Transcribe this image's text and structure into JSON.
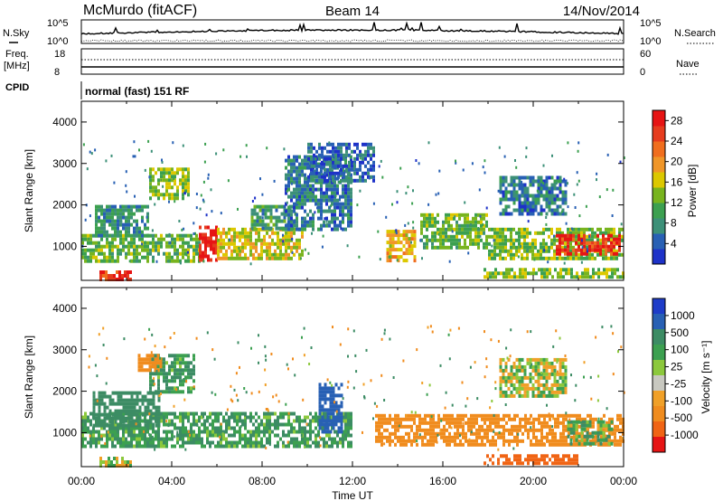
{
  "header": {
    "station": "McMurdo (fitACF)",
    "beam": "Beam 14",
    "date": "14/Nov/2014"
  },
  "summary_panels": {
    "nsky_label": "N.Sky",
    "nsky_ticks": [
      "10^5",
      "10^0"
    ],
    "nsearch_label": "N.Search",
    "nsearch_ticks": [
      "10^5",
      "10^0"
    ],
    "freq_label_1": "Freq.",
    "freq_label_2": "[MHz]",
    "freq_ticks": [
      "18",
      "8"
    ],
    "nave_label": "Nave",
    "nave_ticks": [
      "60",
      "0"
    ],
    "cpid_label": "CPID",
    "cpid_value": "normal (fast) 151 RF"
  },
  "colors": {
    "power_scale": [
      "#1e32c8",
      "#2860b4",
      "#3c9078",
      "#3ca050",
      "#78b41e",
      "#dcc800",
      "#f09628",
      "#f06e1e",
      "#e63c1e",
      "#e61414"
    ],
    "velocity_scale": [
      "#1e3cc8",
      "#2860b4",
      "#3c8c64",
      "#3ca050",
      "#8cc83c",
      "#c8c8c0",
      "#f0a028",
      "#f08c1e",
      "#f06414",
      "#e61414"
    ],
    "ground_scatter": "#b4b4b4"
  },
  "chart_data": [
    {
      "type": "heatmap",
      "name": "power",
      "ylabel": "Slant Range [km]",
      "yticks": [
        "1000",
        "2000",
        "3000",
        "4000"
      ],
      "ylim": [
        180,
        4500
      ],
      "xlim": [
        0,
        24
      ],
      "xticks": [
        "00:00",
        "04:00",
        "08:00",
        "12:00",
        "16:00",
        "20:00",
        "00:00"
      ],
      "colorbar_label": "Power [dB]",
      "colorbar_ticks": [
        "4",
        "8",
        "12",
        "16",
        "20",
        "24",
        "28"
      ],
      "colorbar_range": [
        0,
        30
      ],
      "regions": [
        {
          "t0": 0.0,
          "t1": 5.2,
          "r0": 650,
          "r1": 1300,
          "level": 12
        },
        {
          "t0": 0.6,
          "t1": 3.0,
          "r0": 1300,
          "r1": 2000,
          "level": 8
        },
        {
          "t0": 3.0,
          "t1": 4.8,
          "r0": 2200,
          "r1": 2900,
          "level": 14
        },
        {
          "t0": 0.8,
          "t1": 2.2,
          "r0": 200,
          "r1": 420,
          "level": 26
        },
        {
          "t0": 5.2,
          "t1": 6.0,
          "r0": 700,
          "r1": 1500,
          "level": 28
        },
        {
          "t0": 6.0,
          "t1": 9.8,
          "r0": 700,
          "r1": 1450,
          "level": 16
        },
        {
          "t0": 7.5,
          "t1": 9.5,
          "r0": 1450,
          "r1": 2000,
          "level": 9
        },
        {
          "t0": 9.0,
          "t1": 12.0,
          "r0": 1400,
          "r1": 3200,
          "level": 6
        },
        {
          "t0": 10.0,
          "t1": 13.0,
          "r0": 2600,
          "r1": 3500,
          "level": 5
        },
        {
          "t0": 13.5,
          "t1": 14.8,
          "r0": 700,
          "r1": 1400,
          "level": 18
        },
        {
          "t0": 15.0,
          "t1": 18.0,
          "r0": 1000,
          "r1": 1800,
          "level": 12
        },
        {
          "t0": 18.0,
          "t1": 24.0,
          "r0": 700,
          "r1": 1450,
          "level": 13
        },
        {
          "t0": 17.8,
          "t1": 24.0,
          "r0": 230,
          "r1": 480,
          "level": 14
        },
        {
          "t0": 18.5,
          "t1": 21.5,
          "r0": 1800,
          "r1": 2700,
          "level": 6
        },
        {
          "t0": 21.0,
          "t1": 23.8,
          "r0": 800,
          "r1": 1300,
          "level": 27
        }
      ]
    },
    {
      "type": "heatmap",
      "name": "velocity",
      "ylabel": "Slant Range [km]",
      "yticks": [
        "1000",
        "2000",
        "3000",
        "4000"
      ],
      "ylim": [
        180,
        4500
      ],
      "xlim": [
        0,
        24
      ],
      "xticks": [
        "00:00",
        "04:00",
        "08:00",
        "12:00",
        "16:00",
        "20:00",
        "00:00"
      ],
      "xlabel": "Time UT",
      "colorbar_label": "Velocity [m s⁻¹]",
      "colorbar_ticks": [
        "1000",
        "500",
        "100",
        "25",
        "-25",
        "-100",
        "-500",
        "-1000"
      ],
      "regions": [
        {
          "t0": 0.0,
          "t1": 12.0,
          "r0": 650,
          "r1": 1500,
          "level": 100
        },
        {
          "t0": 0.5,
          "t1": 3.5,
          "r0": 1200,
          "r1": 2000,
          "level": 200
        },
        {
          "t0": 3.0,
          "t1": 5.0,
          "r0": 2000,
          "r1": 2900,
          "level": 100
        },
        {
          "t0": 2.5,
          "t1": 3.5,
          "r0": 2500,
          "r1": 2900,
          "level": -200
        },
        {
          "t0": 0.8,
          "t1": 2.2,
          "r0": 200,
          "r1": 420,
          "level": 0
        },
        {
          "t0": 10.5,
          "t1": 11.5,
          "r0": 1000,
          "r1": 2200,
          "level": 800
        },
        {
          "t0": 13.0,
          "t1": 24.0,
          "r0": 700,
          "r1": 1450,
          "level": -300
        },
        {
          "t0": 17.8,
          "t1": 22.0,
          "r0": 230,
          "r1": 480,
          "level": -800
        },
        {
          "t0": 18.5,
          "t1": 21.5,
          "r0": 1900,
          "r1": 2800,
          "level": 0
        },
        {
          "t0": 21.5,
          "t1": 23.5,
          "r0": 700,
          "r1": 1300,
          "level": 60
        }
      ]
    }
  ]
}
